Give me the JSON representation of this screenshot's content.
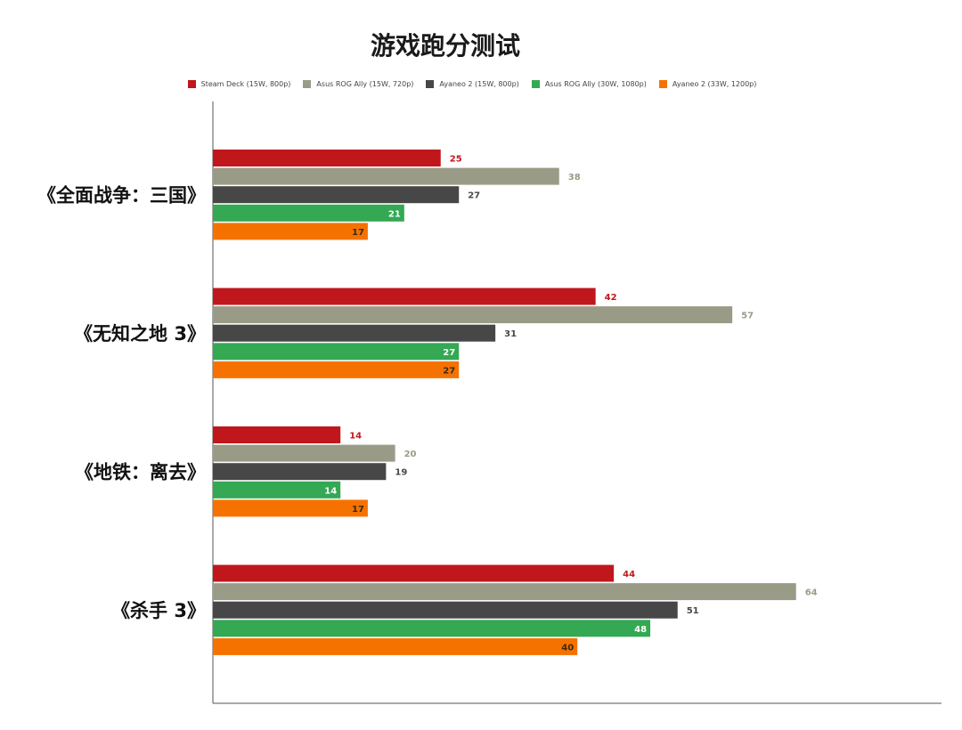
{
  "chart_data": {
    "type": "bar",
    "orientation": "horizontal",
    "title": "游戏跑分测试",
    "categories": [
      "《全面战争：三国》",
      "《无知之地 3》",
      "《地铁：离去》",
      "《杀手 3》"
    ],
    "series": [
      {
        "name": "Steam Deck (15W, 800p)",
        "color": "#c0171c",
        "values": [
          25,
          42,
          14,
          44
        ]
      },
      {
        "name": "Asus ROG Ally (15W, 720p)",
        "color": "#9a9b87",
        "values": [
          38,
          57,
          20,
          64
        ]
      },
      {
        "name": "Ayaneo 2 (15W, 800p)",
        "color": "#474747",
        "values": [
          27,
          31,
          19,
          51
        ]
      },
      {
        "name": "Asus ROG Ally (30W, 1080p)",
        "color": "#34a853",
        "values": [
          21,
          27,
          14,
          48
        ]
      },
      {
        "name": "Ayaneo 2 (33W, 1200p)",
        "color": "#f57200",
        "values": [
          17,
          27,
          17,
          40
        ]
      }
    ],
    "xlim": [
      0,
      80
    ],
    "xlabel": "",
    "ylabel": "",
    "grid": false,
    "legend_position": "top"
  }
}
